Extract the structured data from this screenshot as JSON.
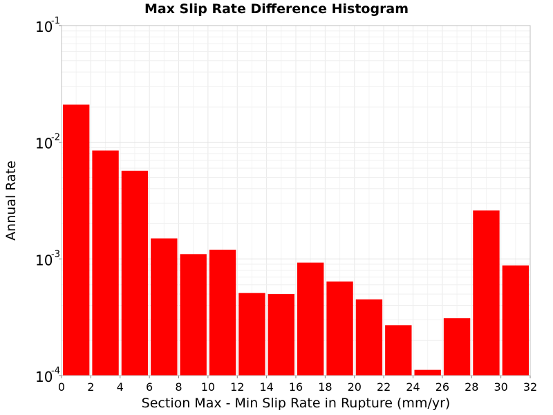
{
  "chart_data": {
    "type": "bar",
    "title": "Max Slip Rate Difference Histogram",
    "xlabel": "Section Max - Min Slip Rate in Rupture (mm/yr)",
    "ylabel": "Annual Rate",
    "yscale": "log",
    "xlim": [
      0,
      32
    ],
    "ylim": [
      0.0001,
      0.1
    ],
    "bar_color": "#ff0000",
    "grid": true,
    "x_ticks": [
      "0",
      "2",
      "4",
      "6",
      "8",
      "10",
      "12",
      "14",
      "16",
      "18",
      "20",
      "22",
      "24",
      "26",
      "28",
      "30",
      "32"
    ],
    "y_ticks": [
      {
        "base": "10",
        "exp": "-4"
      },
      {
        "base": "10",
        "exp": "-3"
      },
      {
        "base": "10",
        "exp": "-2"
      },
      {
        "base": "10",
        "exp": "-1"
      }
    ],
    "bins": [
      {
        "x_start": 0,
        "x_end": 2,
        "value": 0.021
      },
      {
        "x_start": 2,
        "x_end": 4,
        "value": 0.0085
      },
      {
        "x_start": 4,
        "x_end": 6,
        "value": 0.0057
      },
      {
        "x_start": 6,
        "x_end": 8,
        "value": 0.0015
      },
      {
        "x_start": 8,
        "x_end": 10,
        "value": 0.0011
      },
      {
        "x_start": 10,
        "x_end": 12,
        "value": 0.0012
      },
      {
        "x_start": 12,
        "x_end": 14,
        "value": 0.00051
      },
      {
        "x_start": 14,
        "x_end": 16,
        "value": 0.0005
      },
      {
        "x_start": 16,
        "x_end": 18,
        "value": 0.00093
      },
      {
        "x_start": 18,
        "x_end": 20,
        "value": 0.00064
      },
      {
        "x_start": 20,
        "x_end": 22,
        "value": 0.00045
      },
      {
        "x_start": 22,
        "x_end": 24,
        "value": 0.00027
      },
      {
        "x_start": 24,
        "x_end": 26,
        "value": 0.000112
      },
      {
        "x_start": 26,
        "x_end": 28,
        "value": 0.00031
      },
      {
        "x_start": 28,
        "x_end": 30,
        "value": 0.0026
      },
      {
        "x_start": 30,
        "x_end": 32,
        "value": 0.00088
      }
    ]
  }
}
